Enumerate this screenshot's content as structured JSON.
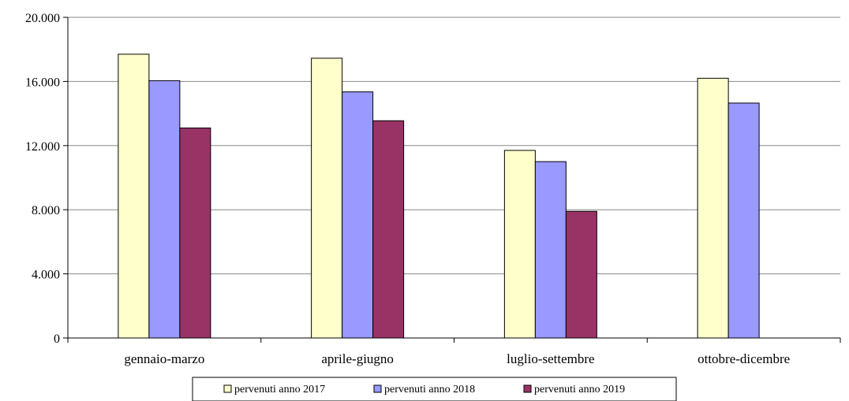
{
  "chart_data": {
    "type": "bar",
    "title": "",
    "xlabel": "",
    "ylabel": "",
    "categories": [
      "gennaio-marzo",
      "aprile-giugno",
      "luglio-settembre",
      "ottobre-dicembre"
    ],
    "series": [
      {
        "name": "pervenuti anno 2017",
        "values": [
          17700,
          17450,
          11700,
          16200
        ],
        "color": "#FFFFCC"
      },
      {
        "name": "pervenuti anno 2018",
        "values": [
          16050,
          15350,
          11000,
          14650
        ],
        "color": "#9999FF"
      },
      {
        "name": "pervenuti anno 2019",
        "values": [
          13100,
          13550,
          7900,
          null
        ],
        "color": "#993366"
      }
    ],
    "ylim": [
      0,
      20000
    ],
    "yticks": [
      0,
      4000,
      8000,
      12000,
      16000,
      20000
    ],
    "ytick_labels": [
      "0",
      "4.000",
      "8.000",
      "12.000",
      "16.000",
      "20.000"
    ],
    "grid": true,
    "legend_position": "bottom"
  }
}
